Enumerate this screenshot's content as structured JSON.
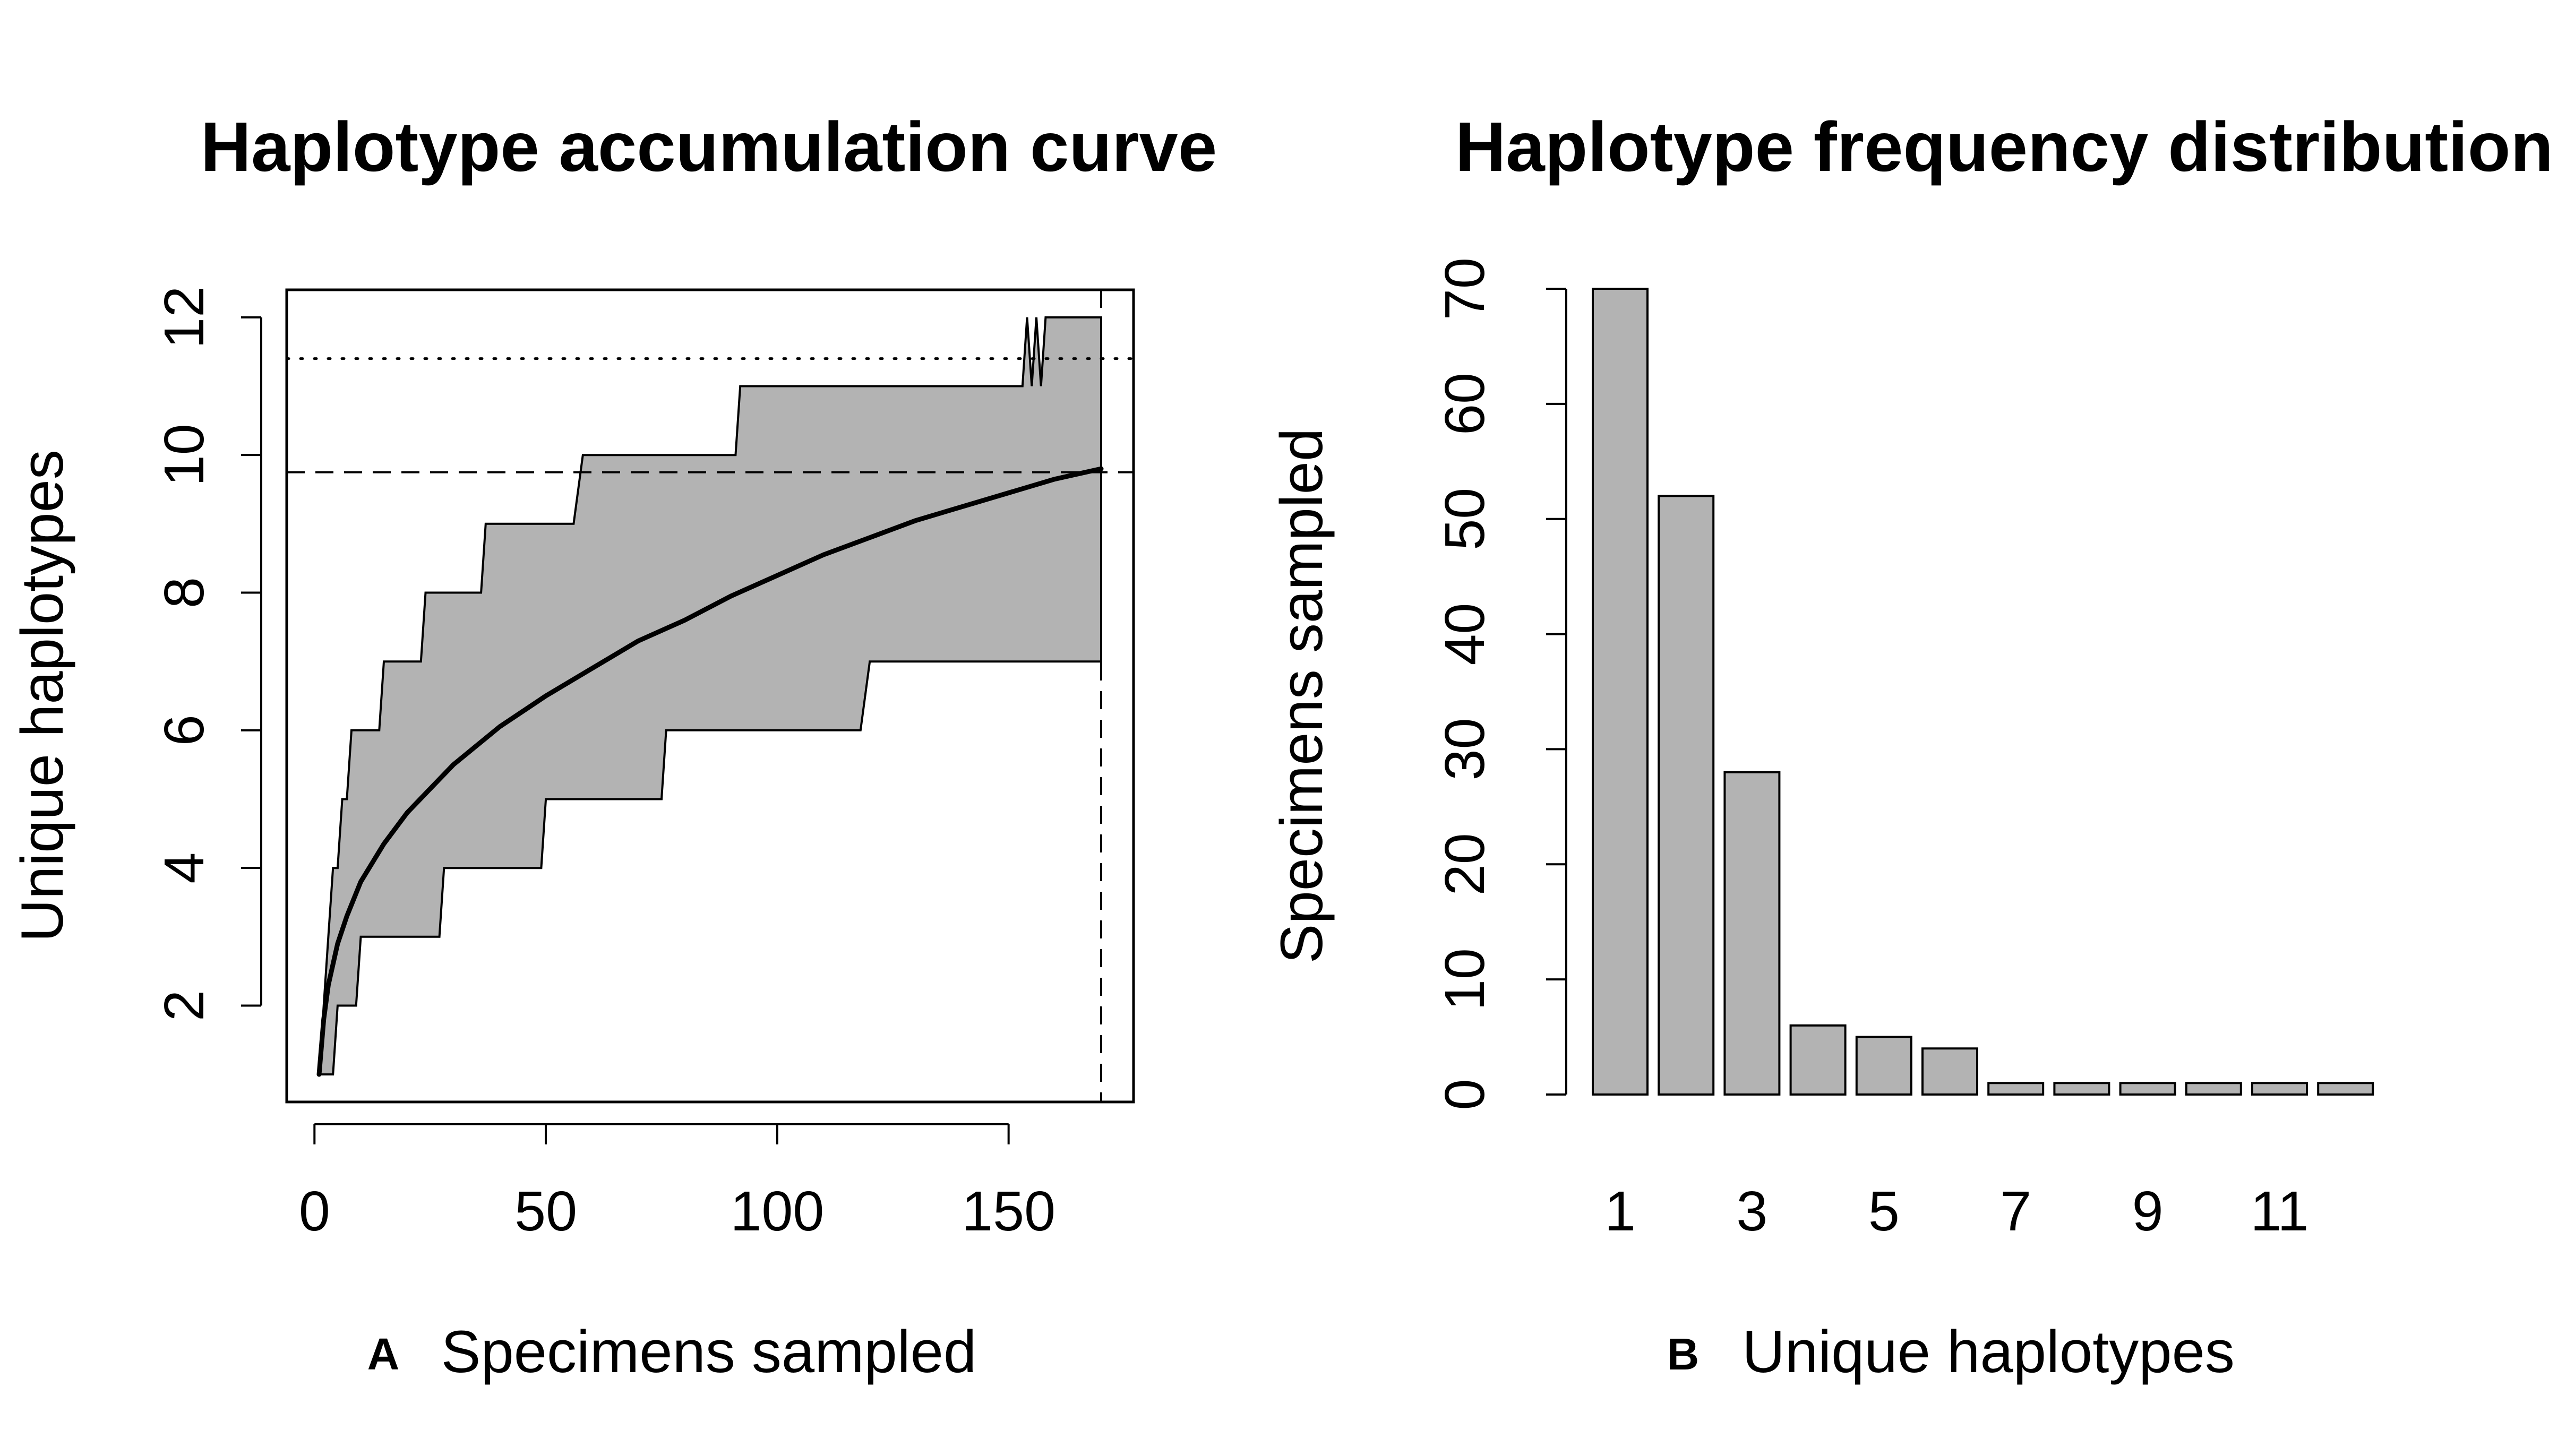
{
  "chart_data": [
    {
      "type": "area",
      "panel_label": "A",
      "title": "Haplotype accumulation curve",
      "xlabel": "Specimens sampled",
      "ylabel": "Unique haplotypes",
      "xlim": [
        -6,
        177
      ],
      "ylim": [
        0.6,
        12.4
      ],
      "xticks": [
        0,
        50,
        100,
        150
      ],
      "yticks": [
        2,
        4,
        6,
        8,
        10,
        12
      ],
      "grid": false,
      "legend": "none",
      "colors": {
        "band": "#b3b3b3",
        "line": "#000000"
      },
      "mean_curve": {
        "x": [
          1,
          2,
          3,
          5,
          7,
          10,
          15,
          20,
          25,
          30,
          40,
          50,
          60,
          70,
          80,
          90,
          100,
          110,
          120,
          130,
          140,
          150,
          160,
          170
        ],
        "y": [
          1.0,
          1.8,
          2.3,
          2.9,
          3.3,
          3.8,
          4.35,
          4.8,
          5.15,
          5.5,
          6.05,
          6.5,
          6.9,
          7.3,
          7.6,
          7.95,
          8.25,
          8.55,
          8.8,
          9.05,
          9.25,
          9.45,
          9.65,
          9.8
        ]
      },
      "upper_bound": {
        "x": [
          1,
          2,
          3,
          4,
          5,
          6,
          7,
          8,
          9,
          10,
          14,
          15,
          22,
          23,
          24,
          36,
          37,
          56,
          58,
          91,
          92,
          93,
          153,
          154,
          155,
          156,
          157,
          158,
          170
        ],
        "y": [
          1,
          2,
          3,
          4,
          4,
          5,
          5,
          6,
          6,
          6,
          6,
          7,
          7,
          7,
          8,
          8,
          9,
          9,
          10,
          10,
          11,
          11,
          11,
          12,
          11,
          12,
          11,
          12,
          12
        ]
      },
      "lower_bound": {
        "x": [
          1,
          4,
          5,
          9,
          10,
          27,
          28,
          49,
          50,
          75,
          76,
          118,
          120,
          170
        ],
        "y": [
          1,
          1,
          2,
          2,
          3,
          3,
          4,
          4,
          5,
          5,
          6,
          6,
          7,
          7
        ]
      },
      "reference_lines": {
        "horizontal_dashed_y": 9.75,
        "horizontal_dotted_y": 11.4,
        "vertical_dashed_x": 170
      }
    },
    {
      "type": "bar",
      "panel_label": "B",
      "title": "Haplotype frequency distribution",
      "xlabel": "Unique haplotypes",
      "ylabel": "Specimens sampled",
      "categories": [
        "1",
        "2",
        "3",
        "4",
        "5",
        "6",
        "7",
        "8",
        "9",
        "10",
        "11",
        "12"
      ],
      "values": [
        70,
        52,
        28,
        6,
        5,
        4,
        1,
        1,
        1,
        1,
        1,
        1
      ],
      "xtick_labels": [
        "1",
        "3",
        "5",
        "7",
        "9",
        "11"
      ],
      "ylim": [
        0,
        70
      ],
      "yticks": [
        0,
        10,
        20,
        30,
        40,
        50,
        60,
        70
      ],
      "grid": false,
      "legend": "none",
      "colors": {
        "bar_fill": "#b3b3b3",
        "bar_stroke": "#000000"
      }
    }
  ]
}
